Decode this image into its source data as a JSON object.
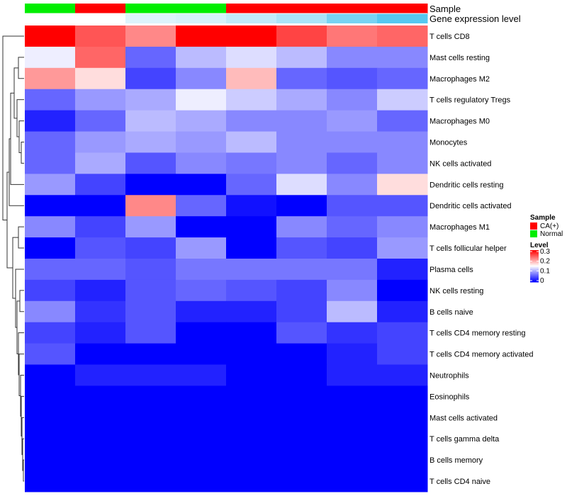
{
  "chart_data": {
    "type": "heatmap",
    "annotation_titles": [
      "Sample",
      "Gene expression level"
    ],
    "sample_groups": [
      "Normal",
      "CA(+)",
      "Normal",
      "Normal",
      "CA(+)",
      "CA(+)",
      "CA(+)",
      "CA(+)"
    ],
    "gene_expression_level": [
      0.0,
      0.0,
      0.1,
      0.12,
      0.18,
      0.25,
      0.4,
      0.5
    ],
    "rows": [
      "T cells CD8",
      "Mast cells resting",
      "Macrophages M2",
      "T cells regulatory  Tregs",
      "Macrophages M0",
      "Monocytes",
      "NK cells activated",
      "Dendritic cells resting",
      "Dendritic cells activated",
      "Macrophages M1",
      "T cells follicular helper",
      "Plasma cells",
      "NK cells resting",
      "B cells naive",
      "T cells CD4 memory resting",
      "T cells CD4 memory activated",
      "Neutrophils",
      "Eosinophils",
      "Mast cells activated",
      "T cells gamma delta",
      "B cells memory",
      "T cells CD4 naive"
    ],
    "values": [
      [
        0.3,
        0.25,
        0.22,
        0.3,
        0.3,
        0.26,
        0.23,
        0.24
      ],
      [
        0.14,
        0.24,
        0.06,
        0.11,
        0.13,
        0.11,
        0.08,
        0.08
      ],
      [
        0.21,
        0.17,
        0.04,
        0.08,
        0.19,
        0.06,
        0.05,
        0.06
      ],
      [
        0.06,
        0.09,
        0.1,
        0.14,
        0.12,
        0.1,
        0.08,
        0.12
      ],
      [
        0.02,
        0.06,
        0.11,
        0.1,
        0.08,
        0.08,
        0.09,
        0.06
      ],
      [
        0.06,
        0.09,
        0.1,
        0.09,
        0.11,
        0.08,
        0.08,
        0.08
      ],
      [
        0.06,
        0.1,
        0.05,
        0.08,
        0.07,
        0.08,
        0.06,
        0.08
      ],
      [
        0.09,
        0.04,
        0.0,
        0.0,
        0.06,
        0.13,
        0.08,
        0.17
      ],
      [
        0.0,
        0.0,
        0.22,
        0.06,
        0.01,
        0.0,
        0.05,
        0.05
      ],
      [
        0.08,
        0.04,
        0.09,
        0.0,
        0.0,
        0.08,
        0.06,
        0.08
      ],
      [
        0.0,
        0.05,
        0.04,
        0.09,
        0.0,
        0.05,
        0.04,
        0.09
      ],
      [
        0.06,
        0.06,
        0.05,
        0.07,
        0.07,
        0.07,
        0.07,
        0.02
      ],
      [
        0.04,
        0.02,
        0.05,
        0.06,
        0.05,
        0.04,
        0.08,
        0.0
      ],
      [
        0.08,
        0.03,
        0.05,
        0.02,
        0.02,
        0.04,
        0.11,
        0.02
      ],
      [
        0.04,
        0.02,
        0.05,
        0.0,
        0.0,
        0.05,
        0.03,
        0.04
      ],
      [
        0.05,
        0.0,
        0.0,
        0.0,
        0.0,
        0.0,
        0.02,
        0.04
      ],
      [
        0.0,
        0.02,
        0.02,
        0.02,
        0.0,
        0.0,
        0.02,
        0.02
      ],
      [
        0.0,
        0.0,
        0.0,
        0.0,
        0.0,
        0.0,
        0.0,
        0.0
      ],
      [
        0.0,
        0.0,
        0.0,
        0.0,
        0.0,
        0.0,
        0.0,
        0.0
      ],
      [
        0.0,
        0.0,
        0.0,
        0.0,
        0.0,
        0.0,
        0.0,
        0.0
      ],
      [
        0.0,
        0.0,
        0.0,
        0.0,
        0.0,
        0.0,
        0.0,
        0.0
      ],
      [
        0.0,
        0.0,
        0.0,
        0.0,
        0.0,
        0.0,
        0.0,
        0.0
      ]
    ],
    "color_scale": {
      "min": 0,
      "mid": 0.15,
      "max": 0.3,
      "low_color": "#0000ff",
      "mid_color": "#ffffff",
      "high_color": "#ff0000"
    },
    "legend": {
      "sample_title": "Sample",
      "sample_entries": [
        {
          "label": "CA(+)",
          "color": "#ff0000"
        },
        {
          "label": "Normal",
          "color": "#00ee00"
        }
      ],
      "level_title": "Level",
      "level_ticks": [
        "0.3",
        "0.2",
        "0.1",
        "0"
      ],
      "position": "right"
    },
    "annotation_colors": {
      "CA(+)": "#ff0000",
      "Normal": "#00ee00",
      "expr_low": "#ffffff",
      "expr_high": "#56c8f0"
    },
    "dendrogram": "rows"
  }
}
